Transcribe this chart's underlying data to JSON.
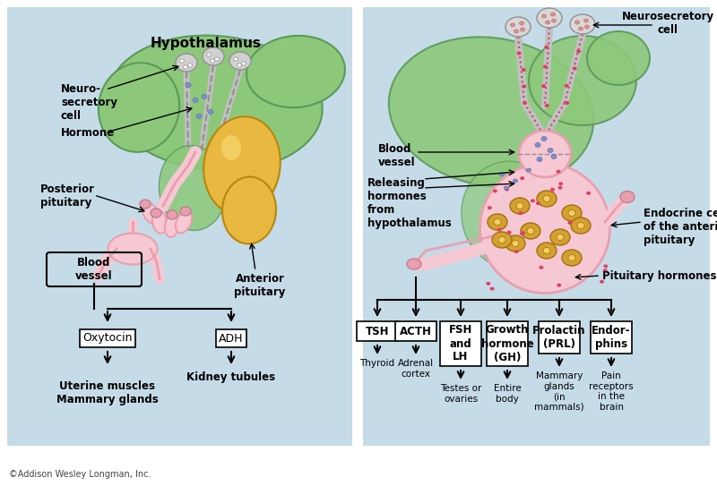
{
  "bg_color": "#c8dce8",
  "white_bg": "#ffffff",
  "panel_bg": "#c5dce8",
  "copyright": "©Addison Wesley Longman, Inc.",
  "left_panel": {
    "label_hypothalamus": "Hypothalamus",
    "label_neurosecretory": "Neuro-\nsecretory\ncell",
    "label_hormone": "Hormone",
    "label_posterior": "Posterior\npituitary",
    "label_blood_vessel": "Blood\nvessel",
    "label_anterior": "Anterior\npituitary",
    "label_oxytocin": "Oxytocin",
    "label_adh": "ADH",
    "label_uterine": "Uterine muscles\nMammary glands",
    "label_kidney": "Kidney tubules"
  },
  "right_panel": {
    "label_neurosecretory": "Neurosecretory\ncell",
    "label_blood_vessel": "Blood\nvessel",
    "label_releasing": "Releasing\nhormones\nfrom\nhypothalamus",
    "label_endocrine": "Endocrine cells\nof the anterior\npituitary",
    "label_pituitary_hormones": "Pituitary hormones",
    "hormones": [
      "TSH",
      "ACTH",
      "FSH\nand\nLH",
      "Growth\nhormone\n(GH)",
      "Prolactin\n(PRL)",
      "Endor-\nphins"
    ],
    "targets": [
      "Thyroid",
      "Adrenal\ncortex",
      "Testes or\novaries",
      "Entire\nbody",
      "Mammary\nglands\n(in\nmammals)",
      "Pain\nreceptors\nin the\nbrain"
    ]
  },
  "green_color": "#8dc87a",
  "gold_color": "#e8b84b",
  "pink_color": "#e8a0b0",
  "gray_color": "#c8c8c8",
  "dark_green": "#5a9a5a",
  "light_pink": "#f5c8d4",
  "orange_gold": "#e8b840",
  "cell_color": "#d4a030",
  "arrow_color": "#000000",
  "text_color": "#000000"
}
